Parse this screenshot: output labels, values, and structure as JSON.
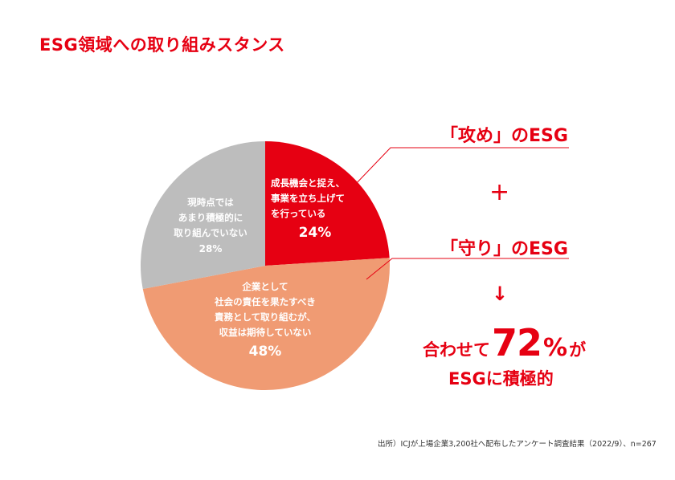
{
  "title": "ESG領域への取り組みスタンス",
  "chart_data": {
    "type": "pie",
    "slices": [
      {
        "lines": [
          "成長機会と捉え、",
          "事業を立ち上げて",
          "を行っている"
        ],
        "value": 24,
        "value_label": "24%",
        "color": "#e60012"
      },
      {
        "lines": [
          "企業として",
          "社会の責任を果たすべき",
          "責務として取り組むが、",
          "収益は期待していない"
        ],
        "value": 48,
        "value_label": "48%",
        "color": "#f09b73"
      },
      {
        "lines": [
          "現時点では",
          "あまり積極的に",
          "取り組んでいない"
        ],
        "value": 28,
        "value_label": "28%",
        "color": "#bdbdbd"
      }
    ]
  },
  "right_panel": {
    "attack_label": "「攻め」のESG",
    "plus": "+",
    "defend_label": "「守り」のESG",
    "arrow": "↓",
    "summary_prefix": "合わせて",
    "summary_number": "72",
    "summary_percent": "%",
    "summary_suffix": "が",
    "summary_line2": "ESGに積極的"
  },
  "source": "出所）ICJが上場企業3,200社へ配布したアンケート調査結果（2022/9）、n=267",
  "colors": {
    "accent": "#e60012",
    "line": "#e60012"
  }
}
